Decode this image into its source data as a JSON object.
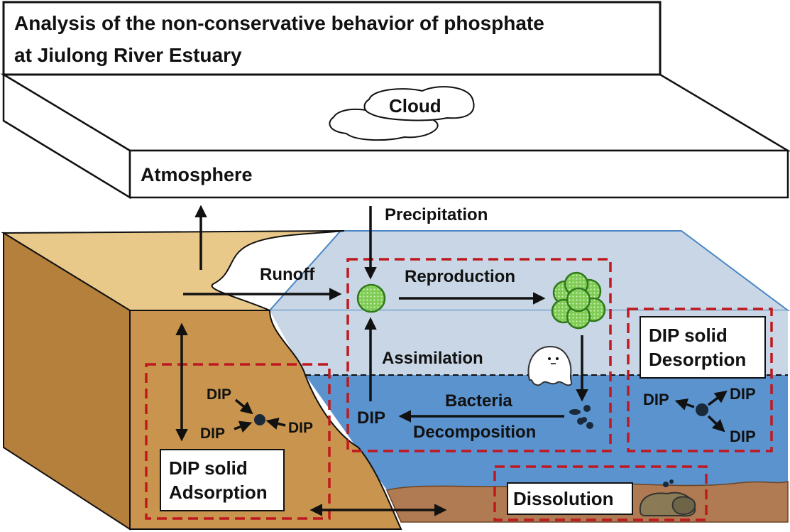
{
  "title": {
    "line1": "Analysis of the non-conservative behavior of phosphate",
    "line2": "at Jiulong River Estuary"
  },
  "atmosphere": {
    "label": "Atmosphere",
    "cloud": "Cloud"
  },
  "processes": {
    "precipitation": "Precipitation",
    "runoff": "Runoff",
    "reproduction": "Reproduction",
    "assimilation": "Assimilation",
    "bacteria": "Bacteria",
    "decomposition": "Decomposition",
    "dissolution": "Dissolution"
  },
  "adsorption": {
    "box_line1": "DIP solid",
    "box_line2": "Adsorption",
    "dip_top": "DIP",
    "dip_bottom": "DIP",
    "dip_right": "DIP"
  },
  "desorption": {
    "box_line1": "DIP solid",
    "box_line2": "Desorption",
    "dip_left": "DIP",
    "dip_top_right": "DIP",
    "dip_bottom_right": "DIP"
  },
  "cycle_dip": "DIP",
  "colors": {
    "land_top": "#e8c98a",
    "land_front": "#c9954e",
    "water_surface": "#c8d6e5",
    "water_deep": "#5b93cf",
    "sediment": "#b07a52",
    "dashed_box": "#c0181e",
    "algae": "#6cc04a"
  }
}
